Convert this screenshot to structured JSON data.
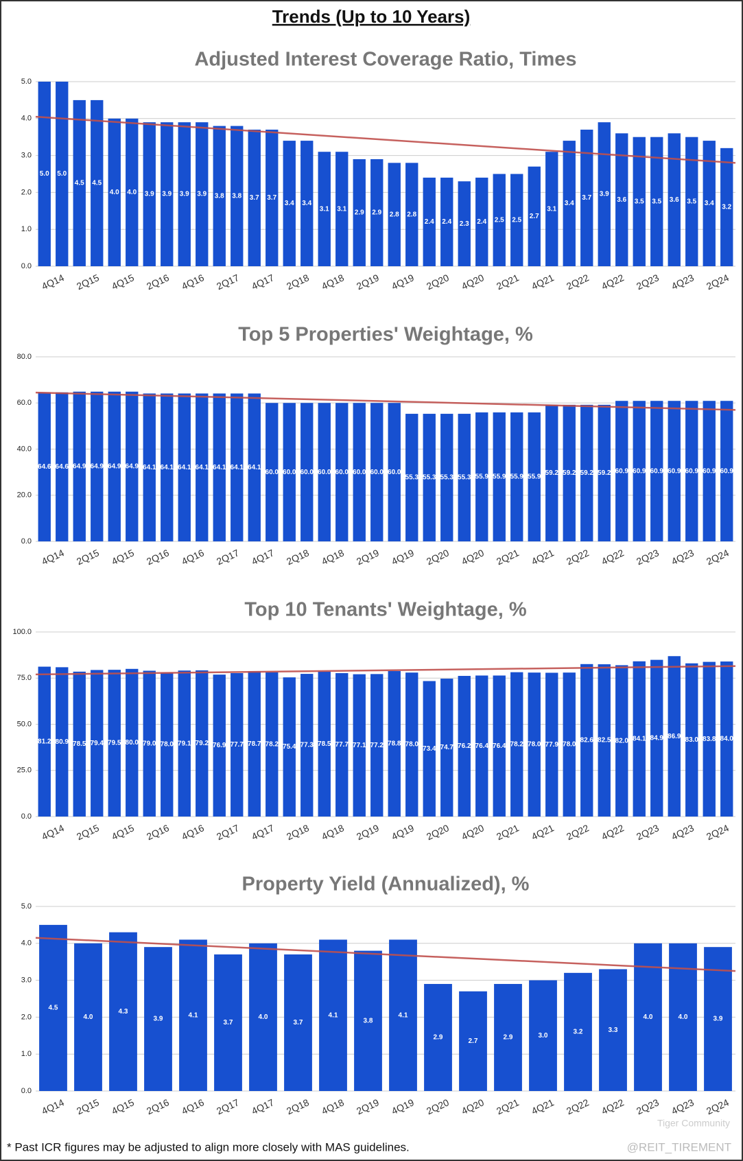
{
  "title": "Trends (Up to 10 Years)",
  "footnote": "* Past ICR figures may be adjusted to align more closely with MAS guidelines.",
  "watermark": "@REIT_TIREMENT",
  "watermark_brand": "Tiger Community",
  "chart_data": [
    {
      "type": "bar",
      "title": "Adjusted Interest Coverage Ratio, Times",
      "color": "#1750d0",
      "trend_color": "#c0504d",
      "grid": true,
      "categories": [
        "4Q14",
        null,
        "2Q15",
        null,
        "4Q15",
        null,
        "2Q16",
        null,
        "4Q16",
        null,
        "2Q17",
        null,
        "4Q17",
        null,
        "2Q18",
        null,
        "4Q18",
        null,
        "2Q19",
        null,
        "4Q19",
        null,
        "2Q20",
        null,
        "4Q20",
        null,
        "2Q21",
        null,
        "4Q21",
        null,
        "2Q22",
        null,
        "4Q22",
        null,
        "2Q23",
        null,
        "4Q23",
        null,
        "2Q24",
        null
      ],
      "values": [
        5.0,
        5.0,
        4.5,
        4.5,
        4.0,
        4.0,
        3.9,
        3.9,
        3.9,
        3.9,
        3.8,
        3.8,
        3.7,
        3.7,
        3.4,
        3.4,
        3.1,
        3.1,
        2.9,
        2.9,
        2.8,
        2.8,
        2.4,
        2.4,
        2.3,
        2.4,
        2.5,
        2.5,
        2.7,
        3.1,
        3.4,
        3.7,
        3.9,
        3.6,
        3.5,
        3.5,
        3.6,
        3.5,
        3.4,
        3.2
      ],
      "value_labels": [
        "5.0",
        "5.0",
        "4.5",
        "4.5",
        "4.0",
        "4.0",
        "3.9",
        "3.9",
        "3.9",
        "3.9",
        "3.8",
        "3.8",
        "3.7",
        "3.7",
        "3.4",
        "3.4",
        "3.1",
        "3.1",
        "2.9",
        "2.9",
        "2.8",
        "2.8",
        "2.4",
        "2.4",
        "2.3",
        "2.4",
        "2.5",
        "2.5",
        "2.7",
        "3.1",
        "3.4",
        "3.7",
        "3.9",
        "3.6",
        "3.5",
        "3.5",
        "3.6",
        "3.5",
        "3.4",
        "3.2"
      ],
      "trendline": [
        4.05,
        2.8
      ],
      "ylim": [
        0,
        5
      ],
      "yticks": [
        {
          "value": 0,
          "label": "0.0"
        },
        {
          "value": 1,
          "label": "1.0"
        },
        {
          "value": 2,
          "label": "2.0"
        },
        {
          "value": 3,
          "label": "3.0"
        },
        {
          "value": 4,
          "label": "4.0"
        },
        {
          "value": 5,
          "label": "5.0"
        }
      ]
    },
    {
      "type": "bar",
      "title": "Top 5 Properties' Weightage, %",
      "color": "#1750d0",
      "trend_color": "#c0504d",
      "grid": true,
      "categories": [
        "4Q14",
        null,
        "2Q15",
        null,
        "4Q15",
        null,
        "2Q16",
        null,
        "4Q16",
        null,
        "2Q17",
        null,
        "4Q17",
        null,
        "2Q18",
        null,
        "4Q18",
        null,
        "2Q19",
        null,
        "4Q19",
        null,
        "2Q20",
        null,
        "4Q20",
        null,
        "2Q21",
        null,
        "4Q21",
        null,
        "2Q22",
        null,
        "4Q22",
        null,
        "2Q23",
        null,
        "4Q23",
        null,
        "2Q24",
        null
      ],
      "values": [
        64.6,
        64.6,
        64.9,
        64.9,
        64.9,
        64.9,
        64.1,
        64.1,
        64.1,
        64.1,
        64.1,
        64.1,
        64.1,
        60.0,
        60.0,
        60.0,
        60.0,
        60.0,
        60.0,
        60.0,
        60.0,
        55.3,
        55.3,
        55.3,
        55.3,
        55.9,
        55.9,
        55.9,
        55.9,
        59.2,
        59.2,
        59.2,
        59.2,
        60.9,
        60.9,
        60.9,
        60.9,
        60.9,
        60.9,
        60.9
      ],
      "value_labels": [
        "64.6",
        "64.6",
        "64.9",
        "64.9",
        "64.9",
        "64.9",
        "64.1",
        "64.1",
        "64.1",
        "64.1",
        "64.1",
        "64.1",
        "64.1",
        "60.0",
        "60.0",
        "60.0",
        "60.0",
        "60.0",
        "60.0",
        "60.0",
        "60.0",
        "55.3",
        "55.3",
        "55.3",
        "55.3",
        "55.9",
        "55.9",
        "55.9",
        "55.9",
        "59.2",
        "59.2",
        "59.2",
        "59.2",
        "60.9",
        "60.9",
        "60.9",
        "60.9",
        "60.9",
        "60.9",
        "60.9"
      ],
      "trendline": [
        64.5,
        57
      ],
      "ylim": [
        0,
        80
      ],
      "yticks": [
        {
          "value": 0,
          "label": "0.0"
        },
        {
          "value": 20,
          "label": "20.0"
        },
        {
          "value": 40,
          "label": "40.0"
        },
        {
          "value": 60,
          "label": "60.0"
        },
        {
          "value": 80,
          "label": "80.0"
        }
      ]
    },
    {
      "type": "bar",
      "title": "Top 10 Tenants' Weightage, %",
      "color": "#1750d0",
      "trend_color": "#c0504d",
      "grid": true,
      "categories": [
        "4Q14",
        null,
        "2Q15",
        null,
        "4Q15",
        null,
        "2Q16",
        null,
        "4Q16",
        null,
        "2Q17",
        null,
        "4Q17",
        null,
        "2Q18",
        null,
        "4Q18",
        null,
        "2Q19",
        null,
        "4Q19",
        null,
        "2Q20",
        null,
        "4Q20",
        null,
        "2Q21",
        null,
        "4Q21",
        null,
        "2Q22",
        null,
        "4Q22",
        null,
        "2Q23",
        null,
        "4Q23",
        null,
        "2Q24",
        null
      ],
      "values": [
        81.2,
        80.9,
        78.5,
        79.4,
        79.5,
        80.0,
        79.0,
        78.0,
        79.1,
        79.2,
        76.9,
        77.7,
        78.7,
        78.2,
        75.4,
        77.3,
        78.5,
        77.7,
        77.1,
        77.2,
        78.8,
        78.0,
        73.4,
        74.7,
        76.2,
        76.4,
        76.4,
        78.2,
        78.0,
        77.9,
        78.0,
        82.6,
        82.5,
        82.0,
        84.1,
        84.9,
        86.9,
        83.0,
        83.8,
        84.0
      ],
      "value_labels": [
        "81.2",
        "80.9",
        "78.5",
        "79.4",
        "79.5",
        "80.0",
        "79.0",
        "78.0",
        "79.1",
        "79.2",
        "76.9",
        "77.7",
        "78.7",
        "78.2",
        "75.4",
        "77.3",
        "78.5",
        "77.7",
        "77.1",
        "77.2",
        "78.8",
        "78.0",
        "73.4",
        "74.7",
        "76.2",
        "76.4",
        "76.4",
        "78.2",
        "78.0",
        "77.9",
        "78.0",
        "82.6",
        "82.5",
        "82.0",
        "84.1",
        "84.9",
        "86.9",
        "83.0",
        "83.8",
        "84.0"
      ],
      "trendline": [
        77,
        81.5
      ],
      "ylim": [
        0,
        100
      ],
      "yticks": [
        {
          "value": 0,
          "label": "0.0"
        },
        {
          "value": 25,
          "label": "25.0"
        },
        {
          "value": 50,
          "label": "50.0"
        },
        {
          "value": 75,
          "label": "75.0"
        },
        {
          "value": 100,
          "label": "100.0"
        }
      ]
    },
    {
      "type": "bar",
      "title": "Property Yield (Annualized), %",
      "color": "#1750d0",
      "trend_color": "#c0504d",
      "grid": true,
      "categories": [
        "4Q14",
        "2Q15",
        "4Q15",
        "2Q16",
        "4Q16",
        "2Q17",
        "4Q17",
        "2Q18",
        "4Q18",
        "2Q19",
        "4Q19",
        "2Q20",
        "4Q20",
        "2Q21",
        "4Q21",
        "2Q22",
        "4Q22",
        "2Q23",
        "4Q23",
        "2Q24"
      ],
      "values": [
        4.5,
        4.0,
        4.3,
        3.9,
        4.1,
        3.7,
        4.0,
        3.7,
        4.1,
        3.8,
        4.1,
        2.9,
        2.7,
        2.9,
        3.0,
        3.2,
        3.3,
        4.0,
        4.0,
        3.9
      ],
      "value_labels": [
        "4.5",
        "4.0",
        "4.3",
        "3.9",
        "4.1",
        "3.7",
        "4.0",
        "3.7",
        "4.1",
        "3.8",
        "4.1",
        "2.9",
        "2.7",
        "2.9",
        "3.0",
        "3.2",
        "3.3",
        "4.0",
        "4.0",
        "3.9"
      ],
      "trendline": [
        4.15,
        3.25
      ],
      "ylim": [
        0,
        5
      ],
      "yticks": [
        {
          "value": 0,
          "label": "0.0"
        },
        {
          "value": 1,
          "label": "1.0"
        },
        {
          "value": 2,
          "label": "2.0"
        },
        {
          "value": 3,
          "label": "3.0"
        },
        {
          "value": 4,
          "label": "4.0"
        },
        {
          "value": 5,
          "label": "5.0"
        }
      ]
    }
  ]
}
